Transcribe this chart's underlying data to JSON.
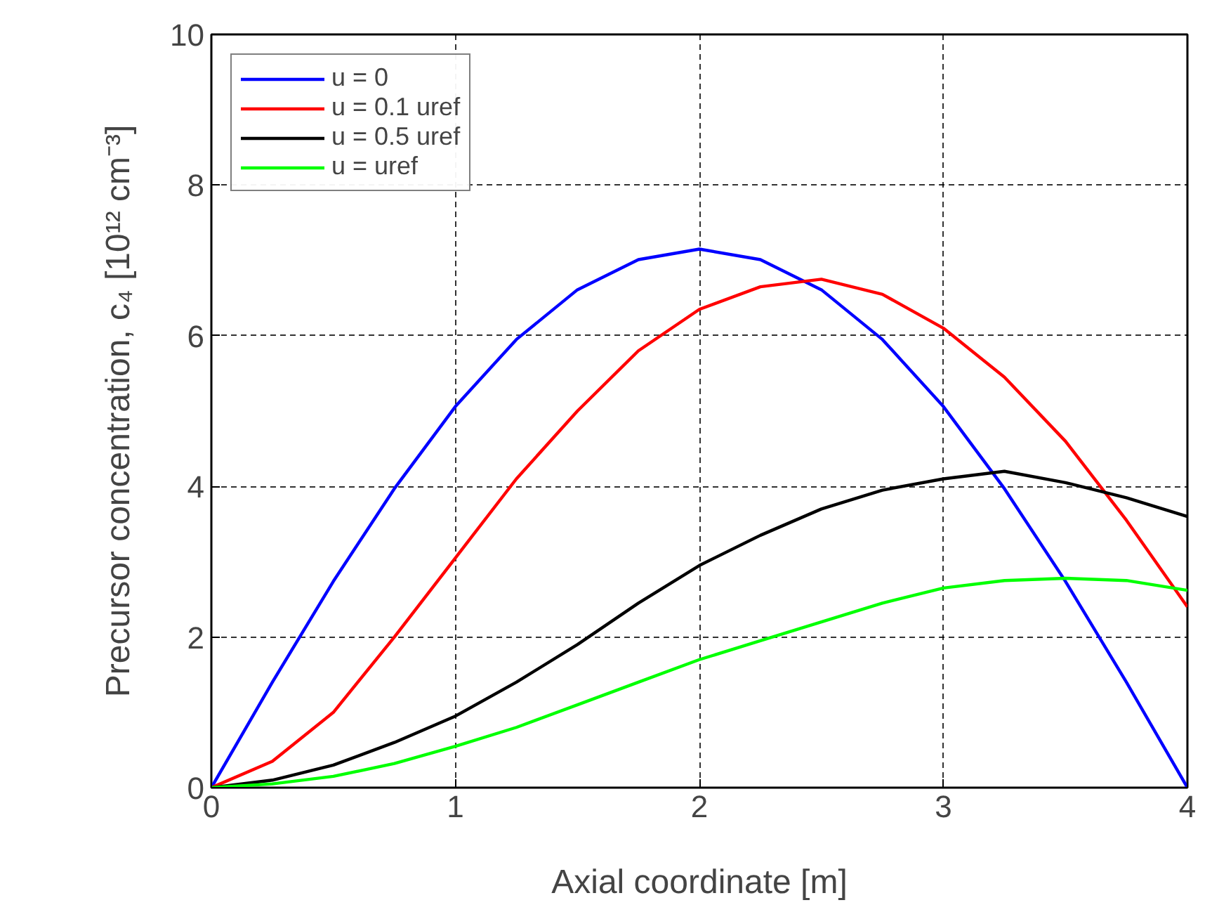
{
  "chart_data": {
    "type": "line",
    "xlabel": "Axial coordinate [m]",
    "ylabel": "Precursor concentration, c₄ [10¹² cm⁻³]",
    "xlim": [
      0,
      4
    ],
    "ylim": [
      0,
      10
    ],
    "xticks": [
      0,
      1,
      2,
      3,
      4
    ],
    "yticks": [
      0,
      2,
      4,
      6,
      8,
      10
    ],
    "grid": true,
    "legend": "top left",
    "line_style": "solid",
    "marker": "none",
    "x": [
      0,
      0.25,
      0.5,
      0.75,
      1,
      1.25,
      1.5,
      1.75,
      2,
      2.25,
      2.5,
      2.75,
      3,
      3.25,
      3.5,
      3.75,
      4
    ],
    "series": [
      {
        "name": "u = 0",
        "color": "#0000ff",
        "values": [
          0,
          1.4,
          2.74,
          3.97,
          5.06,
          5.95,
          6.61,
          7.01,
          7.15,
          7.01,
          6.61,
          5.95,
          5.06,
          3.97,
          2.74,
          1.4,
          0
        ]
      },
      {
        "name": "u = 0.1 uref",
        "color": "#ff0000",
        "values": [
          0,
          0.35,
          1.0,
          2.0,
          3.05,
          4.1,
          5.0,
          5.8,
          6.35,
          6.65,
          6.75,
          6.55,
          6.1,
          5.45,
          4.6,
          3.55,
          2.4
        ]
      },
      {
        "name": "u = 0.5 uref",
        "color": "#000000",
        "values": [
          0,
          0.1,
          0.3,
          0.6,
          0.95,
          1.4,
          1.9,
          2.45,
          2.95,
          3.35,
          3.7,
          3.95,
          4.1,
          4.2,
          4.05,
          3.85,
          3.6
        ]
      },
      {
        "name": "u = uref",
        "color": "#00ff00",
        "values": [
          0,
          0.05,
          0.15,
          0.32,
          0.55,
          0.8,
          1.1,
          1.4,
          1.7,
          1.95,
          2.2,
          2.45,
          2.65,
          2.75,
          2.78,
          2.75,
          2.62
        ]
      }
    ]
  }
}
